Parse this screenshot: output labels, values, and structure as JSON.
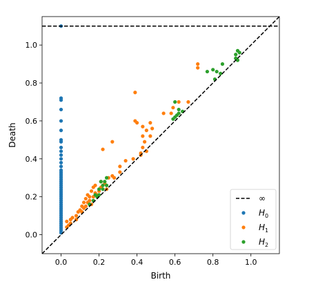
{
  "chart_data": {
    "type": "scatter",
    "xlabel": "Birth",
    "ylabel": "Death",
    "xlim": [
      -0.1,
      1.15
    ],
    "ylim": [
      -0.1,
      1.15
    ],
    "infinity_value": 1.1,
    "x_ticks": [
      {
        "value": 0.0,
        "label": "0.0"
      },
      {
        "value": 0.2,
        "label": "0.2"
      },
      {
        "value": 0.4,
        "label": "0.4"
      },
      {
        "value": 0.6,
        "label": "0.6"
      },
      {
        "value": 0.8,
        "label": "0.8"
      },
      {
        "value": 1.0,
        "label": "1.0"
      }
    ],
    "y_ticks": [
      {
        "value": 0.0,
        "label": "0.0"
      },
      {
        "value": 0.2,
        "label": "0.2"
      },
      {
        "value": 0.4,
        "label": "0.4"
      },
      {
        "value": 0.6,
        "label": "0.6"
      },
      {
        "value": 0.8,
        "label": "0.8"
      },
      {
        "value": 1.0,
        "label": "1.0"
      }
    ],
    "legend": {
      "position": "lower-right",
      "entries": [
        {
          "label": "∞",
          "kind": "dashed-line"
        },
        {
          "label": "H",
          "subscript": "0",
          "kind": "marker",
          "series": 0
        },
        {
          "label": "H",
          "subscript": "1",
          "kind": "marker",
          "series": 1
        },
        {
          "label": "H",
          "subscript": "2",
          "kind": "marker",
          "series": 2
        }
      ]
    },
    "series": [
      {
        "color": "#1f77b4",
        "points": [
          [
            0.0,
            1.1
          ],
          [
            0.0,
            0.72
          ],
          [
            0.0,
            0.71
          ],
          [
            0.0,
            0.66
          ],
          [
            0.0,
            0.6
          ],
          [
            0.0,
            0.55
          ],
          [
            0.0,
            0.5
          ],
          [
            0.0,
            0.49
          ],
          [
            0.0,
            0.46
          ],
          [
            0.0,
            0.44
          ],
          [
            0.0,
            0.42
          ],
          [
            0.0,
            0.4
          ],
          [
            0.0,
            0.38
          ],
          [
            0.0,
            0.36
          ],
          [
            0.0,
            0.34
          ],
          [
            0.0,
            0.33
          ],
          [
            0.0,
            0.32
          ],
          [
            0.0,
            0.31
          ],
          [
            0.0,
            0.3
          ],
          [
            0.0,
            0.29
          ],
          [
            0.0,
            0.28
          ],
          [
            0.0,
            0.27
          ],
          [
            0.0,
            0.26
          ],
          [
            0.0,
            0.25
          ],
          [
            0.0,
            0.24
          ],
          [
            0.0,
            0.23
          ],
          [
            0.0,
            0.22
          ],
          [
            0.0,
            0.21
          ],
          [
            0.0,
            0.2
          ],
          [
            0.0,
            0.19
          ],
          [
            0.0,
            0.18
          ],
          [
            0.0,
            0.17
          ],
          [
            0.0,
            0.16
          ],
          [
            0.0,
            0.15
          ],
          [
            0.0,
            0.14
          ],
          [
            0.0,
            0.13
          ],
          [
            0.0,
            0.12
          ],
          [
            0.0,
            0.11
          ],
          [
            0.0,
            0.1
          ],
          [
            0.0,
            0.09
          ],
          [
            0.0,
            0.08
          ],
          [
            0.0,
            0.07
          ],
          [
            0.0,
            0.06
          ],
          [
            0.0,
            0.05
          ],
          [
            0.0,
            0.04
          ],
          [
            0.0,
            0.03
          ],
          [
            0.0,
            0.02
          ],
          [
            0.0,
            0.01
          ]
        ]
      },
      {
        "color": "#ff7f0e",
        "points": [
          [
            0.72,
            0.9
          ],
          [
            0.72,
            0.88
          ],
          [
            0.39,
            0.75
          ],
          [
            0.62,
            0.7
          ],
          [
            0.67,
            0.7
          ],
          [
            0.59,
            0.67
          ],
          [
            0.54,
            0.64
          ],
          [
            0.58,
            0.64
          ],
          [
            0.39,
            0.6
          ],
          [
            0.4,
            0.59
          ],
          [
            0.47,
            0.59
          ],
          [
            0.43,
            0.57
          ],
          [
            0.48,
            0.56
          ],
          [
            0.45,
            0.55
          ],
          [
            0.43,
            0.52
          ],
          [
            0.47,
            0.52
          ],
          [
            0.27,
            0.49
          ],
          [
            0.44,
            0.49
          ],
          [
            0.43,
            0.46
          ],
          [
            0.22,
            0.45
          ],
          [
            0.45,
            0.44
          ],
          [
            0.42,
            0.43
          ],
          [
            0.42,
            0.42
          ],
          [
            0.38,
            0.4
          ],
          [
            0.34,
            0.39
          ],
          [
            0.31,
            0.36
          ],
          [
            0.31,
            0.33
          ],
          [
            0.27,
            0.31
          ],
          [
            0.25,
            0.3
          ],
          [
            0.28,
            0.3
          ],
          [
            0.21,
            0.28
          ],
          [
            0.18,
            0.26
          ],
          [
            0.23,
            0.27
          ],
          [
            0.21,
            0.25
          ],
          [
            0.17,
            0.25
          ],
          [
            0.24,
            0.24
          ],
          [
            0.2,
            0.23
          ],
          [
            0.16,
            0.23
          ],
          [
            0.18,
            0.22
          ],
          [
            0.14,
            0.21
          ],
          [
            0.19,
            0.21
          ],
          [
            0.15,
            0.2
          ],
          [
            0.17,
            0.2
          ],
          [
            0.13,
            0.19
          ],
          [
            0.15,
            0.18
          ],
          [
            0.12,
            0.17
          ],
          [
            0.14,
            0.17
          ],
          [
            0.16,
            0.16
          ],
          [
            0.11,
            0.15
          ],
          [
            0.13,
            0.15
          ],
          [
            0.12,
            0.14
          ],
          [
            0.1,
            0.13
          ],
          [
            0.09,
            0.12
          ],
          [
            0.11,
            0.12
          ],
          [
            0.08,
            0.1
          ],
          [
            0.06,
            0.09
          ],
          [
            0.08,
            0.08
          ],
          [
            0.05,
            0.08
          ],
          [
            0.03,
            0.07
          ],
          [
            0.05,
            0.06
          ],
          [
            0.04,
            0.05
          ],
          [
            0.03,
            0.04
          ]
        ]
      },
      {
        "color": "#2ca02c",
        "points": [
          [
            0.93,
            0.97
          ],
          [
            0.94,
            0.96
          ],
          [
            0.92,
            0.95
          ],
          [
            0.92,
            0.93
          ],
          [
            0.93,
            0.92
          ],
          [
            0.85,
            0.9
          ],
          [
            0.77,
            0.86
          ],
          [
            0.8,
            0.87
          ],
          [
            0.82,
            0.86
          ],
          [
            0.84,
            0.85
          ],
          [
            0.81,
            0.82
          ],
          [
            0.6,
            0.7
          ],
          [
            0.62,
            0.66
          ],
          [
            0.64,
            0.65
          ],
          [
            0.62,
            0.64
          ],
          [
            0.61,
            0.63
          ],
          [
            0.6,
            0.62
          ],
          [
            0.59,
            0.61
          ],
          [
            0.24,
            0.3
          ],
          [
            0.21,
            0.28
          ],
          [
            0.23,
            0.28
          ],
          [
            0.22,
            0.26
          ],
          [
            0.24,
            0.26
          ],
          [
            0.2,
            0.24
          ],
          [
            0.22,
            0.24
          ],
          [
            0.18,
            0.21
          ],
          [
            0.2,
            0.21
          ],
          [
            0.19,
            0.2
          ],
          [
            0.17,
            0.18
          ],
          [
            0.15,
            0.16
          ]
        ]
      }
    ]
  }
}
